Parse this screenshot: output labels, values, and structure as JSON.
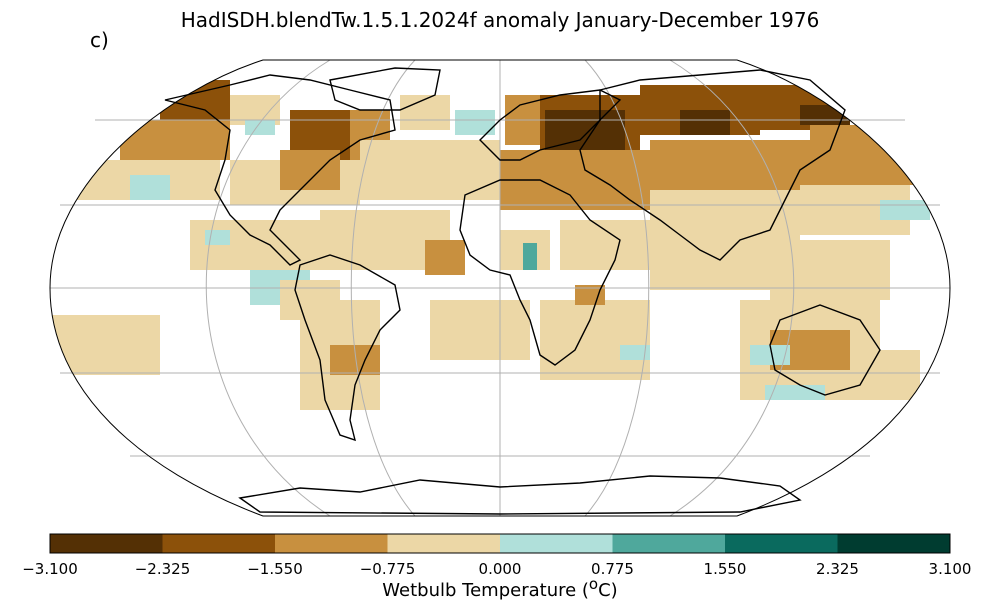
{
  "title": "HadISDH.blendTw.1.5.1.2024f anomaly January-December 1976",
  "panel_label": "c)",
  "colorbar": {
    "label_main": "Wetbulb Temperature (",
    "label_sup": "o",
    "label_end": "C)",
    "ticks": [
      "−3.100",
      "−2.325",
      "−1.550",
      "−0.775",
      "0.000",
      "0.775",
      "1.550",
      "2.325",
      "3.100"
    ],
    "colors": [
      "#543005",
      "#8c510a",
      "#c8903f",
      "#ecd7a6",
      "#b0e0da",
      "#4fa89c",
      "#0a6a5e",
      "#003c30"
    ]
  },
  "map": {
    "projection": "Robinson",
    "land_outline_color": "#000000",
    "gridline_color": "#b0b0b0"
  }
}
